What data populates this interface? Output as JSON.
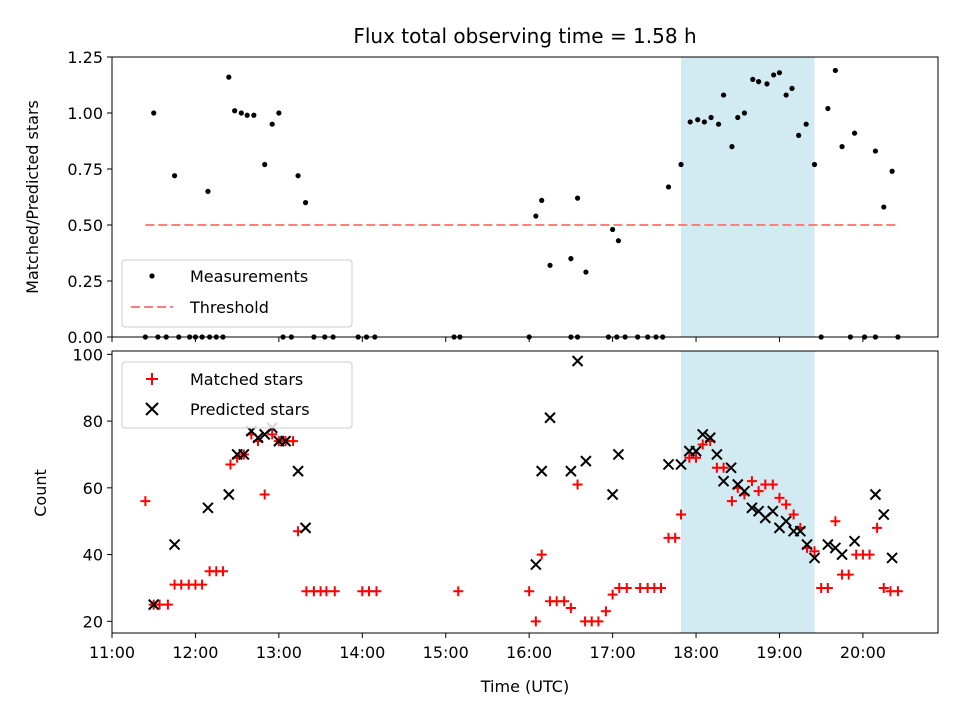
{
  "title": "Flux total observing time = 1.58 h",
  "colors": {
    "measurement": "#000000",
    "threshold": "#ff7f7f",
    "matched": "#ff0000",
    "predicted": "#000000",
    "span": "#add8e6"
  },
  "chart_data": [
    {
      "type": "scatter",
      "ylabel": "Matched/Predicted stars",
      "xlim_hours": [
        11.0,
        20.9
      ],
      "ylim": [
        0,
        1.25
      ],
      "yticks": [
        0,
        0.25,
        0.5,
        0.75,
        1.0,
        1.25
      ],
      "ytick_labels": [
        "0.00",
        "0.25",
        "0.50",
        "0.75",
        "1.00",
        "1.25"
      ],
      "highlight_span_hours": [
        17.82,
        19.42
      ],
      "threshold": {
        "label": "Threshold",
        "value": 0.5,
        "x_hours": [
          11.4,
          20.4
        ]
      },
      "legend": {
        "position": "lower-left",
        "entries": [
          "Measurements",
          "Threshold"
        ]
      },
      "series": [
        {
          "name": "Measurements",
          "points": [
            [
              11.5,
              1.0
            ],
            [
              11.75,
              0.72
            ],
            [
              12.15,
              0.65
            ],
            [
              12.4,
              1.16
            ],
            [
              12.47,
              1.01
            ],
            [
              12.55,
              1.0
            ],
            [
              12.62,
              0.99
            ],
            [
              12.7,
              0.99
            ],
            [
              12.83,
              0.77
            ],
            [
              12.92,
              0.95
            ],
            [
              13.0,
              1.0
            ],
            [
              13.23,
              0.72
            ],
            [
              13.32,
              0.6
            ],
            [
              16.08,
              0.54
            ],
            [
              16.15,
              0.61
            ],
            [
              16.25,
              0.32
            ],
            [
              16.5,
              0.35
            ],
            [
              16.58,
              0.62
            ],
            [
              16.68,
              0.29
            ],
            [
              17.0,
              0.48
            ],
            [
              17.07,
              0.43
            ],
            [
              17.67,
              0.67
            ],
            [
              17.82,
              0.77
            ],
            [
              17.93,
              0.96
            ],
            [
              18.02,
              0.97
            ],
            [
              18.1,
              0.96
            ],
            [
              18.18,
              0.98
            ],
            [
              18.27,
              0.95
            ],
            [
              18.33,
              1.08
            ],
            [
              18.43,
              0.85
            ],
            [
              18.5,
              0.98
            ],
            [
              18.58,
              1.0
            ],
            [
              18.68,
              1.15
            ],
            [
              18.75,
              1.14
            ],
            [
              18.85,
              1.13
            ],
            [
              18.93,
              1.17
            ],
            [
              19.0,
              1.18
            ],
            [
              19.08,
              1.08
            ],
            [
              19.15,
              1.11
            ],
            [
              19.23,
              0.9
            ],
            [
              19.32,
              0.95
            ],
            [
              19.42,
              0.77
            ],
            [
              19.58,
              1.02
            ],
            [
              19.67,
              1.19
            ],
            [
              19.75,
              0.85
            ],
            [
              19.9,
              0.91
            ],
            [
              20.15,
              0.83
            ],
            [
              20.25,
              0.58
            ],
            [
              20.35,
              0.74
            ],
            [
              11.4,
              0
            ],
            [
              11.55,
              0
            ],
            [
              11.65,
              0
            ],
            [
              11.8,
              0
            ],
            [
              11.93,
              0
            ],
            [
              12.0,
              0
            ],
            [
              12.08,
              0
            ],
            [
              12.17,
              0
            ],
            [
              12.25,
              0
            ],
            [
              12.33,
              0
            ],
            [
              13.05,
              0
            ],
            [
              13.15,
              0
            ],
            [
              13.42,
              0
            ],
            [
              13.55,
              0
            ],
            [
              13.65,
              0
            ],
            [
              13.95,
              0
            ],
            [
              14.05,
              0
            ],
            [
              14.15,
              0
            ],
            [
              15.1,
              0
            ],
            [
              15.17,
              0
            ],
            [
              16.0,
              0
            ],
            [
              16.5,
              0
            ],
            [
              16.58,
              0
            ],
            [
              16.95,
              0
            ],
            [
              17.05,
              0
            ],
            [
              17.15,
              0
            ],
            [
              17.3,
              0
            ],
            [
              17.42,
              0
            ],
            [
              17.52,
              0
            ],
            [
              17.6,
              0
            ],
            [
              19.5,
              0
            ],
            [
              19.85,
              0
            ],
            [
              20.02,
              0
            ],
            [
              20.15,
              0
            ],
            [
              20.42,
              0
            ]
          ]
        }
      ]
    },
    {
      "type": "scatter",
      "ylabel": "Count",
      "xlabel": "Time (UTC)",
      "xlim_hours": [
        11.0,
        20.9
      ],
      "ylim": [
        16.5,
        101
      ],
      "yticks": [
        20,
        40,
        60,
        80,
        100
      ],
      "ytick_labels": [
        "20",
        "40",
        "60",
        "80",
        "100"
      ],
      "xticks_hours": [
        11,
        12,
        13,
        14,
        15,
        16,
        17,
        18,
        19,
        20
      ],
      "xtick_labels": [
        "11:00",
        "12:00",
        "13:00",
        "14:00",
        "15:00",
        "16:00",
        "17:00",
        "18:00",
        "19:00",
        "20:00"
      ],
      "highlight_span_hours": [
        17.82,
        19.42
      ],
      "legend": {
        "position": "upper-left",
        "entries": [
          "Matched stars",
          "Predicted stars"
        ]
      },
      "series": [
        {
          "name": "Matched stars",
          "points": [
            [
              11.4,
              56
            ],
            [
              11.5,
              25
            ],
            [
              11.57,
              25
            ],
            [
              11.67,
              25
            ],
            [
              11.75,
              31
            ],
            [
              11.83,
              31
            ],
            [
              11.92,
              31
            ],
            [
              12.0,
              31
            ],
            [
              12.08,
              31
            ],
            [
              12.17,
              35
            ],
            [
              12.25,
              35
            ],
            [
              12.33,
              35
            ],
            [
              12.42,
              67
            ],
            [
              12.5,
              69
            ],
            [
              12.58,
              70
            ],
            [
              12.67,
              76
            ],
            [
              12.75,
              74
            ],
            [
              12.83,
              58
            ],
            [
              12.92,
              76
            ],
            [
              13.0,
              74
            ],
            [
              13.08,
              74
            ],
            [
              13.17,
              74
            ],
            [
              13.23,
              47
            ],
            [
              13.33,
              29
            ],
            [
              13.42,
              29
            ],
            [
              13.5,
              29
            ],
            [
              13.57,
              29
            ],
            [
              13.67,
              29
            ],
            [
              14.0,
              29
            ],
            [
              14.08,
              29
            ],
            [
              14.17,
              29
            ],
            [
              15.15,
              29
            ],
            [
              16.0,
              29
            ],
            [
              16.08,
              20
            ],
            [
              16.15,
              40
            ],
            [
              16.25,
              26
            ],
            [
              16.33,
              26
            ],
            [
              16.42,
              26
            ],
            [
              16.5,
              24
            ],
            [
              16.58,
              61
            ],
            [
              16.67,
              20
            ],
            [
              16.75,
              20
            ],
            [
              16.83,
              20
            ],
            [
              16.92,
              23
            ],
            [
              17.0,
              28
            ],
            [
              17.08,
              30
            ],
            [
              17.17,
              30
            ],
            [
              17.33,
              30
            ],
            [
              17.42,
              30
            ],
            [
              17.5,
              30
            ],
            [
              17.58,
              30
            ],
            [
              17.67,
              45
            ],
            [
              17.75,
              45
            ],
            [
              17.82,
              52
            ],
            [
              17.92,
              69
            ],
            [
              18.0,
              69
            ],
            [
              18.08,
              73
            ],
            [
              18.17,
              74
            ],
            [
              18.25,
              66
            ],
            [
              18.33,
              66
            ],
            [
              18.43,
              56
            ],
            [
              18.5,
              60
            ],
            [
              18.58,
              58
            ],
            [
              18.67,
              62
            ],
            [
              18.75,
              59
            ],
            [
              18.83,
              61
            ],
            [
              18.92,
              61
            ],
            [
              19.0,
              57
            ],
            [
              19.08,
              55
            ],
            [
              19.17,
              52
            ],
            [
              19.25,
              48
            ],
            [
              19.33,
              42
            ],
            [
              19.42,
              41
            ],
            [
              19.5,
              30
            ],
            [
              19.58,
              30
            ],
            [
              19.67,
              50
            ],
            [
              19.75,
              34
            ],
            [
              19.83,
              34
            ],
            [
              19.92,
              40
            ],
            [
              20.0,
              40
            ],
            [
              20.08,
              40
            ],
            [
              20.17,
              48
            ],
            [
              20.25,
              30
            ],
            [
              20.33,
              29
            ],
            [
              20.42,
              29
            ]
          ]
        },
        {
          "name": "Predicted stars",
          "points": [
            [
              11.5,
              25
            ],
            [
              11.75,
              43
            ],
            [
              12.15,
              54
            ],
            [
              12.4,
              58
            ],
            [
              12.5,
              70
            ],
            [
              12.58,
              70
            ],
            [
              12.67,
              77
            ],
            [
              12.75,
              75
            ],
            [
              12.83,
              76
            ],
            [
              12.92,
              78
            ],
            [
              13.0,
              74
            ],
            [
              13.08,
              74
            ],
            [
              13.23,
              65
            ],
            [
              13.32,
              48
            ],
            [
              16.08,
              37
            ],
            [
              16.15,
              65
            ],
            [
              16.25,
              81
            ],
            [
              16.5,
              65
            ],
            [
              16.58,
              98
            ],
            [
              16.68,
              68
            ],
            [
              17.0,
              58
            ],
            [
              17.07,
              70
            ],
            [
              17.67,
              67
            ],
            [
              17.82,
              67
            ],
            [
              17.92,
              71
            ],
            [
              18.0,
              71
            ],
            [
              18.08,
              76
            ],
            [
              18.17,
              75
            ],
            [
              18.25,
              70
            ],
            [
              18.33,
              62
            ],
            [
              18.42,
              66
            ],
            [
              18.5,
              61
            ],
            [
              18.58,
              59
            ],
            [
              18.67,
              54
            ],
            [
              18.75,
              53
            ],
            [
              18.83,
              51
            ],
            [
              18.92,
              53
            ],
            [
              19.0,
              48
            ],
            [
              19.08,
              50
            ],
            [
              19.17,
              47
            ],
            [
              19.25,
              47
            ],
            [
              19.33,
              43
            ],
            [
              19.42,
              39
            ],
            [
              19.58,
              43
            ],
            [
              19.67,
              42
            ],
            [
              19.75,
              40
            ],
            [
              19.9,
              44
            ],
            [
              20.15,
              58
            ],
            [
              20.25,
              52
            ],
            [
              20.35,
              39
            ]
          ]
        }
      ]
    }
  ]
}
